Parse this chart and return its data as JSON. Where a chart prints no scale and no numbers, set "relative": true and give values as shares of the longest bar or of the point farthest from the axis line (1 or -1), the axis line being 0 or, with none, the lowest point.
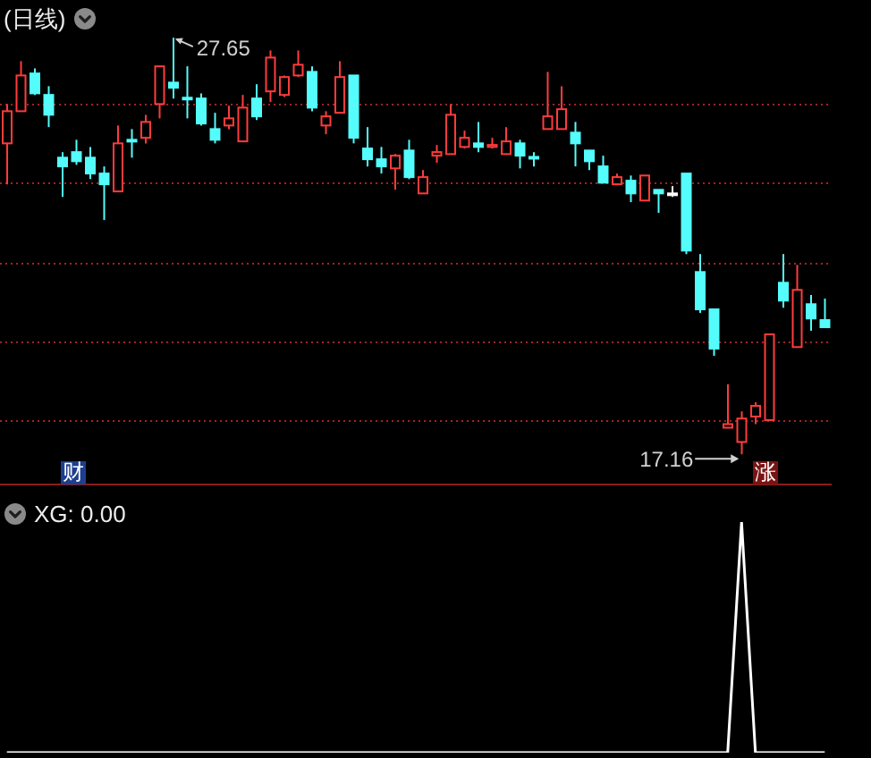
{
  "chart_data": [
    {
      "type": "candlestick",
      "title": "(日线)",
      "categories": [
        null,
        null,
        null,
        null,
        null,
        null,
        null,
        null,
        null,
        null,
        null,
        null,
        null,
        null,
        null,
        null,
        null,
        null,
        null,
        null,
        null,
        null,
        null,
        null,
        null,
        null,
        null,
        null,
        null,
        null,
        null,
        null,
        null,
        null,
        null,
        null,
        null,
        null,
        null,
        null,
        null,
        null,
        null,
        null,
        null,
        null,
        null,
        null,
        null,
        null,
        null,
        null,
        null,
        null,
        null,
        null,
        null,
        null,
        null,
        null
      ],
      "ohlc": [
        [
          24.99,
          25.98,
          23.96,
          25.8
        ],
        [
          25.8,
          27.06,
          25.8,
          26.7
        ],
        [
          26.75,
          26.88,
          26.21,
          26.25
        ],
        [
          26.21,
          26.43,
          25.4,
          25.71
        ],
        [
          24.63,
          24.77,
          23.64,
          24.41
        ],
        [
          24.77,
          25.08,
          24.45,
          24.54
        ],
        [
          24.63,
          24.9,
          24.09,
          24.23
        ],
        [
          24.23,
          24.41,
          23.06,
          23.96
        ],
        [
          23.78,
          25.44,
          23.78,
          24.99
        ],
        [
          25.08,
          25.35,
          24.63,
          25.04
        ],
        [
          25.13,
          25.71,
          24.99,
          25.53
        ],
        [
          25.98,
          26.93,
          25.62,
          26.93
        ],
        [
          26.52,
          27.65,
          26.12,
          26.39
        ],
        [
          26.14,
          26.93,
          25.62,
          26.12
        ],
        [
          26.12,
          26.25,
          25.44,
          25.49
        ],
        [
          25.35,
          25.76,
          24.99,
          25.08
        ],
        [
          25.44,
          25.94,
          25.35,
          25.62
        ],
        [
          25.04,
          26.21,
          25.04,
          25.89
        ],
        [
          26.12,
          26.48,
          25.58,
          25.67
        ],
        [
          26.3,
          27.33,
          26.03,
          27.15
        ],
        [
          26.21,
          26.7,
          26.16,
          26.66
        ],
        [
          26.7,
          27.33,
          26.66,
          26.97
        ],
        [
          26.79,
          26.93,
          25.8,
          25.89
        ],
        [
          25.44,
          25.8,
          25.22,
          25.67
        ],
        [
          25.76,
          27.06,
          25.76,
          26.66
        ],
        [
          26.7,
          26.7,
          24.99,
          25.13
        ],
        [
          24.86,
          25.4,
          24.41,
          24.59
        ],
        [
          24.59,
          24.9,
          24.23,
          24.41
        ],
        [
          24.36,
          24.72,
          23.82,
          24.68
        ],
        [
          24.81,
          25.08,
          24.09,
          24.14
        ],
        [
          23.73,
          24.32,
          23.73,
          24.14
        ],
        [
          24.68,
          24.95,
          24.5,
          24.77
        ],
        [
          24.72,
          25.98,
          24.72,
          25.71
        ],
        [
          24.9,
          25.31,
          24.86,
          25.13
        ],
        [
          24.99,
          25.53,
          24.77,
          24.9
        ],
        [
          24.9,
          25.13,
          24.86,
          24.95
        ],
        [
          24.72,
          25.4,
          24.72,
          25.04
        ],
        [
          24.99,
          25.08,
          24.36,
          24.68
        ],
        [
          24.65,
          24.77,
          24.41,
          24.61
        ],
        [
          25.35,
          26.79,
          25.35,
          25.67
        ],
        [
          25.35,
          26.43,
          25.35,
          25.85
        ],
        [
          25.26,
          25.53,
          24.41,
          24.99
        ],
        [
          24.81,
          24.81,
          24.32,
          24.54
        ],
        [
          24.41,
          24.68,
          24.0,
          24.0
        ],
        [
          23.96,
          24.23,
          23.96,
          24.14
        ],
        [
          24.05,
          24.18,
          23.51,
          23.73
        ],
        [
          23.55,
          24.18,
          23.55,
          24.18
        ],
        [
          23.82,
          23.82,
          23.24,
          23.73
        ],
        [
          23.73,
          23.91,
          23.64,
          23.73
        ],
        [
          24.23,
          24.23,
          22.2,
          22.29
        ],
        [
          21.75,
          22.2,
          20.72,
          20.81
        ],
        [
          20.81,
          20.81,
          19.64,
          19.82
        ],
        [
          17.83,
          18.92,
          17.83,
          17.92
        ],
        [
          17.47,
          18.24,
          17.16,
          18.06
        ],
        [
          18.11,
          18.47,
          17.92,
          18.38
        ],
        [
          18.02,
          20.18,
          18.02,
          20.18
        ],
        [
          21.48,
          22.2,
          20.85,
          21.03
        ],
        [
          19.86,
          21.93,
          19.86,
          21.3
        ],
        [
          20.94,
          21.17,
          20.27,
          20.58
        ],
        [
          20.54,
          21.08,
          20.36,
          20.36
        ]
      ],
      "colors": [
        "#ff3c3c",
        "#ff3c3c",
        "#54fcfc",
        "#54fcfc",
        "#54fcfc",
        "#54fcfc",
        "#54fcfc",
        "#54fcfc",
        "#ff3c3c",
        "#54fcfc",
        "#ff3c3c",
        "#ff3c3c",
        "#54fcfc",
        "#54fcfc",
        "#54fcfc",
        "#54fcfc",
        "#ff3c3c",
        "#ff3c3c",
        "#54fcfc",
        "#ff3c3c",
        "#ff3c3c",
        "#ff3c3c",
        "#54fcfc",
        "#ff3c3c",
        "#ff3c3c",
        "#54fcfc",
        "#54fcfc",
        "#54fcfc",
        "#ff3c3c",
        "#54fcfc",
        "#ff3c3c",
        "#ff3c3c",
        "#ff3c3c",
        "#ff3c3c",
        "#54fcfc",
        "#ff3c3c",
        "#ff3c3c",
        "#54fcfc",
        "#54fcfc",
        "#ff3c3c",
        "#ff3c3c",
        "#54fcfc",
        "#54fcfc",
        "#54fcfc",
        "#ff3c3c",
        "#54fcfc",
        "#ff3c3c",
        "#54fcfc",
        "#ffffff",
        "#54fcfc",
        "#54fcfc",
        "#54fcfc",
        "#ff3c3c",
        "#ff3c3c",
        "#ff3c3c",
        "#ff3c3c",
        "#54fcfc",
        "#ff3c3c",
        "#54fcfc",
        "#54fcfc"
      ],
      "ylim": [
        16.4,
        28.6
      ],
      "yticks": [
        {
          "value": 18,
          "label": null
        },
        {
          "value": 20,
          "label": null
        },
        {
          "value": 22,
          "label": null
        },
        {
          "value": 24,
          "label": null
        },
        {
          "value": 26,
          "label": null
        }
      ],
      "grid": "y",
      "tick_labels": false,
      "annotations": [
        "27.65",
        "17.16",
        "财",
        "涨"
      ]
    },
    {
      "type": "line",
      "title": "XG: 0.00",
      "categories": [
        null,
        null,
        null,
        null,
        null,
        null,
        null,
        null,
        null,
        null,
        null,
        null,
        null,
        null,
        null,
        null,
        null,
        null,
        null,
        null,
        null,
        null,
        null,
        null,
        null,
        null,
        null,
        null,
        null,
        null,
        null,
        null,
        null,
        null,
        null,
        null,
        null,
        null,
        null,
        null,
        null,
        null,
        null,
        null,
        null,
        null,
        null,
        null,
        null,
        null,
        null,
        null,
        null,
        null,
        null,
        null,
        null,
        null,
        null,
        null
      ],
      "series": [
        {
          "color": "#ffffff",
          "values": [
            0,
            0,
            0,
            0,
            0,
            0,
            0,
            0,
            0,
            0,
            0,
            0,
            0,
            0,
            0,
            0,
            0,
            0,
            0,
            0,
            0,
            0,
            0,
            0,
            0,
            0,
            0,
            0,
            0,
            0,
            0,
            0,
            0,
            0,
            0,
            0,
            0,
            0,
            0,
            0,
            0,
            0,
            0,
            0,
            0,
            0,
            0,
            0,
            0,
            0,
            0,
            0,
            0,
            1,
            0,
            0,
            0,
            0,
            0,
            0
          ]
        }
      ],
      "relative": true,
      "tick_labels": false
    }
  ]
}
